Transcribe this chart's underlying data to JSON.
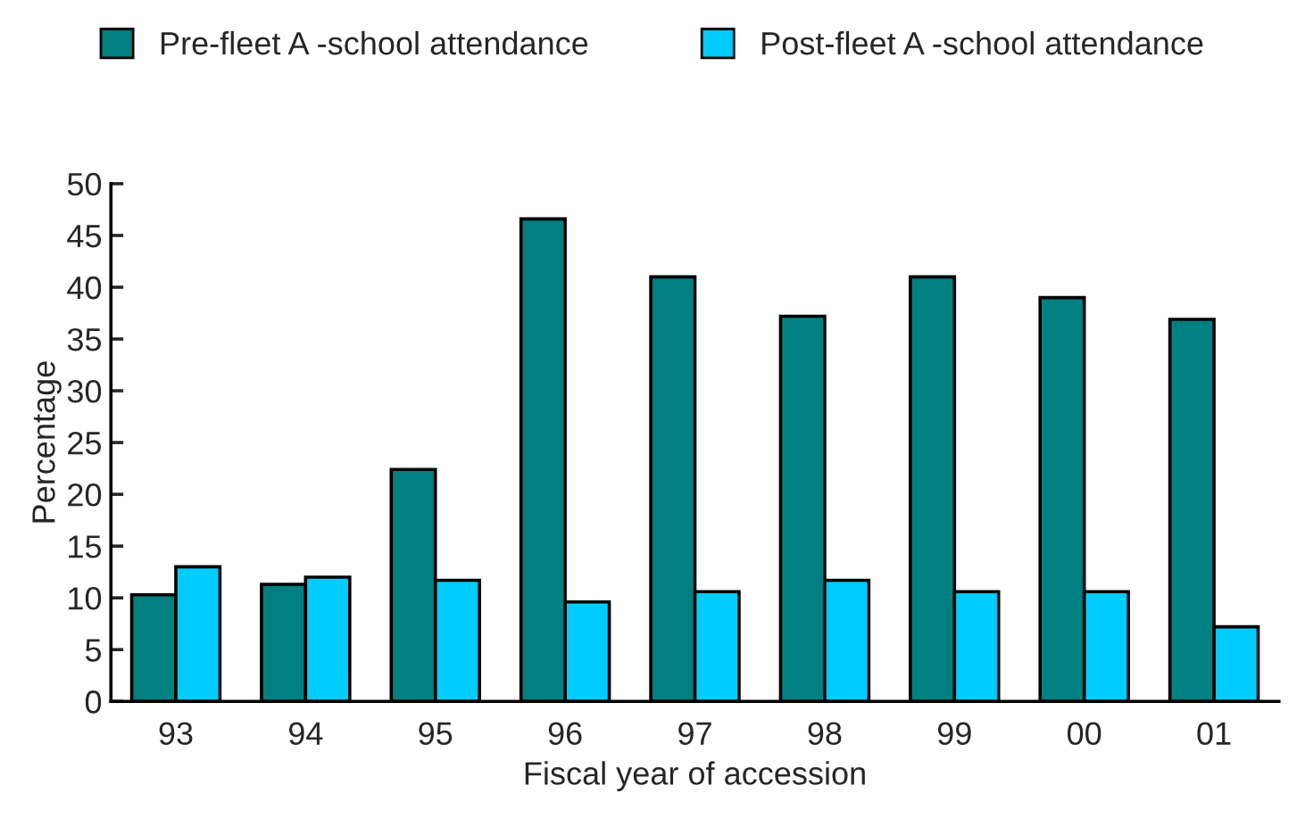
{
  "chart_data": {
    "type": "bar",
    "xlabel": "Fiscal year of accession",
    "ylabel": "Percentage",
    "categories": [
      "93",
      "94",
      "95",
      "96",
      "97",
      "98",
      "99",
      "00",
      "01"
    ],
    "series": [
      {
        "name": "Pre-fleet A -school attendance",
        "color": "#008080",
        "values": [
          10.3,
          11.3,
          22.4,
          46.6,
          41.0,
          37.2,
          41.0,
          39.0,
          36.9
        ]
      },
      {
        "name": "Post-fleet A -school attendance",
        "color": "#00ccff",
        "values": [
          13.0,
          12.0,
          11.7,
          9.6,
          10.6,
          11.7,
          10.6,
          10.6,
          7.2
        ]
      }
    ],
    "ylim": [
      0,
      50
    ],
    "yticks": [
      0,
      5,
      10,
      15,
      20,
      25,
      30,
      35,
      40,
      45,
      50
    ],
    "grid": false,
    "legend": "top"
  }
}
